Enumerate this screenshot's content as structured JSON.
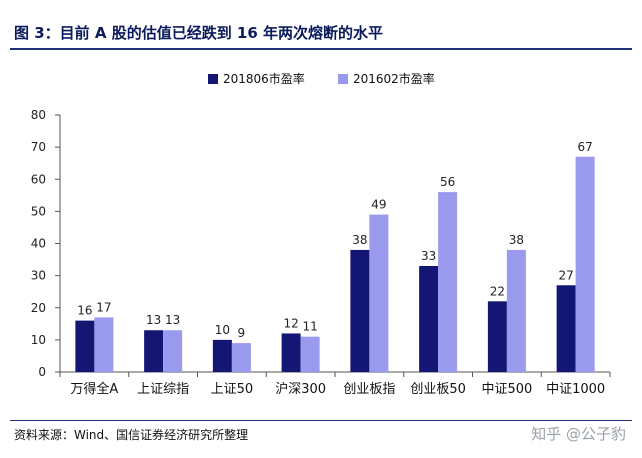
{
  "header": {
    "title": "图  3：目前 A 股的估值已经跌到 16 年两次熔断的水平"
  },
  "chart_data": {
    "type": "bar",
    "title": "",
    "xlabel": "",
    "ylabel": "",
    "categories": [
      "万得全A",
      "上证综指",
      "上证50",
      "沪深300",
      "创业板指",
      "创业板50",
      "中证500",
      "中证1000"
    ],
    "series": [
      {
        "name": "201806市盈率",
        "values": [
          16,
          13,
          10,
          12,
          38,
          33,
          22,
          27
        ],
        "color": "#141673"
      },
      {
        "name": "201602市盈率",
        "values": [
          17,
          13,
          9,
          11,
          49,
          56,
          38,
          67
        ],
        "color": "#9999ee"
      }
    ],
    "ylim": [
      0,
      80
    ],
    "yticks": [
      0,
      10,
      20,
      30,
      40,
      50,
      60,
      70,
      80
    ],
    "grid": false,
    "legend_position": "top-center"
  },
  "footer": {
    "source": "资料来源：Wind、国信证券经济研究所整理",
    "watermark": "知乎 @公子豹"
  }
}
